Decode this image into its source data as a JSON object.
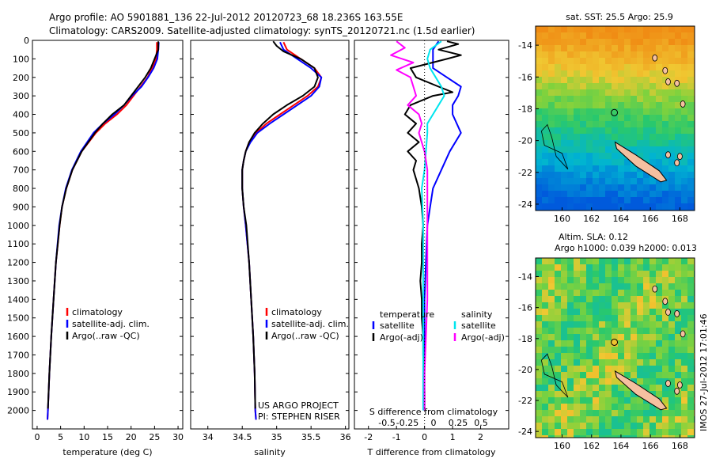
{
  "header": {
    "line1": "Argo profile: AO 5901881_136 22-Jul-2012 20120723_68 18.236S 163.55E",
    "line2": "Climatology: CARS2009. Satellite-adjusted climatology: synTS_20120721.nc (1.5d earlier)"
  },
  "colors": {
    "climatology": "#ff0000",
    "satellite": "#0000ff",
    "argo": "#000000",
    "cyan": "#00e5ee",
    "magenta": "#ff00ff",
    "island": "#f5c0a0"
  },
  "chart_data": [
    {
      "type": "line",
      "id": "temperature",
      "xlabel": "temperature (deg C)",
      "ylabel": "",
      "xlim": [
        -1,
        31
      ],
      "ylim": [
        2100,
        0
      ],
      "xticks": [
        0,
        5,
        10,
        15,
        20,
        25,
        30
      ],
      "yticks": [
        0,
        100,
        200,
        300,
        400,
        500,
        600,
        700,
        800,
        900,
        1000,
        1100,
        1200,
        1300,
        1400,
        1500,
        1600,
        1700,
        1800,
        1900,
        2000
      ],
      "legend": [
        "climatology",
        "satellite-adj. clim.",
        "Argo(..raw -QC)"
      ],
      "series": [
        {
          "name": "climatology",
          "color": "#ff0000",
          "y": [
            10,
            50,
            100,
            150,
            200,
            250,
            300,
            350,
            400,
            450,
            500,
            600,
            700,
            800,
            900,
            1000,
            1200,
            1400,
            1600,
            1800,
            2000,
            2050
          ],
          "x": [
            25.5,
            25.5,
            25.3,
            24.5,
            23.5,
            22.0,
            20.5,
            19.0,
            17.0,
            14.5,
            12.5,
            9.5,
            7.5,
            6.2,
            5.3,
            4.8,
            4.0,
            3.5,
            3.0,
            2.6,
            2.3,
            2.2
          ]
        },
        {
          "name": "satellite-adj. clim.",
          "color": "#0000ff",
          "y": [
            10,
            50,
            100,
            150,
            200,
            250,
            300,
            350,
            400,
            450,
            500,
            600,
            700,
            800,
            900,
            1000,
            1200,
            1400,
            1600,
            1800,
            2000,
            2050
          ],
          "x": [
            25.9,
            25.8,
            25.6,
            24.8,
            23.6,
            22.2,
            20.2,
            18.5,
            16.5,
            14.0,
            12.0,
            9.3,
            7.4,
            6.1,
            5.3,
            4.7,
            4.0,
            3.5,
            3.0,
            2.6,
            2.3,
            2.2
          ]
        },
        {
          "name": "Argo(..raw -QC)",
          "color": "#000000",
          "y": [
            5,
            50,
            100,
            150,
            200,
            250,
            300,
            350,
            400,
            450,
            500,
            600,
            700,
            800,
            900,
            1000,
            1200,
            1400,
            1600,
            1800,
            1990
          ],
          "x": [
            25.8,
            25.8,
            25.0,
            24.2,
            23.0,
            21.5,
            20.0,
            18.5,
            16.0,
            14.0,
            12.3,
            9.5,
            7.5,
            6.2,
            5.3,
            4.8,
            4.0,
            3.5,
            3.0,
            2.6,
            2.3
          ]
        }
      ]
    },
    {
      "type": "line",
      "id": "salinity",
      "xlabel": "salinity",
      "ylabel": "",
      "xlim": [
        33.75,
        36.05
      ],
      "ylim": [
        2100,
        0
      ],
      "xticks": [
        34,
        34.5,
        35,
        35.5,
        36
      ],
      "legend": [
        "climatology",
        "satellite-adj. clim.",
        "Argo(..raw -QC)"
      ],
      "annotation": [
        "US ARGO PROJECT",
        "PI: STEPHEN RISER"
      ],
      "series": [
        {
          "name": "climatology",
          "color": "#ff0000",
          "y": [
            10,
            50,
            100,
            150,
            200,
            250,
            300,
            350,
            400,
            450,
            500,
            550,
            600,
            650,
            700,
            800,
            900,
            1000,
            1200,
            1400,
            1600,
            1800,
            2000,
            2050
          ],
          "x": [
            35.1,
            35.15,
            35.35,
            35.55,
            35.65,
            35.6,
            35.45,
            35.25,
            35.05,
            34.85,
            34.7,
            34.6,
            34.55,
            34.52,
            34.5,
            34.5,
            34.52,
            34.55,
            34.6,
            34.63,
            34.66,
            34.68,
            34.69,
            34.7
          ]
        },
        {
          "name": "satellite-adj. clim.",
          "color": "#0000ff",
          "y": [
            10,
            50,
            100,
            150,
            200,
            250,
            300,
            350,
            400,
            450,
            500,
            550,
            600,
            650,
            700,
            800,
            900,
            1000,
            1200,
            1400,
            1600,
            1800,
            2000,
            2050
          ],
          "x": [
            35.05,
            35.1,
            35.3,
            35.5,
            35.65,
            35.62,
            35.5,
            35.3,
            35.1,
            34.9,
            34.72,
            34.62,
            34.55,
            34.52,
            34.5,
            34.5,
            34.52,
            34.55,
            34.6,
            34.63,
            34.66,
            34.68,
            34.69,
            34.7
          ]
        },
        {
          "name": "Argo(..raw -QC)",
          "color": "#000000",
          "y": [
            5,
            30,
            60,
            100,
            150,
            200,
            250,
            300,
            350,
            400,
            450,
            500,
            550,
            600,
            650,
            700,
            800,
            900,
            1000,
            1200,
            1400,
            1600,
            1800,
            1990
          ],
          "x": [
            34.95,
            35.0,
            35.1,
            35.35,
            35.55,
            35.6,
            35.55,
            35.38,
            35.15,
            34.95,
            34.8,
            34.68,
            34.6,
            34.55,
            34.52,
            34.5,
            34.5,
            34.52,
            34.56,
            34.6,
            34.63,
            34.66,
            34.68,
            34.69
          ]
        }
      ]
    },
    {
      "type": "line",
      "id": "difference",
      "xlabel": "T difference from climatology",
      "xlabel2": "S difference from climatology",
      "xlim": [
        -2.5,
        3
      ],
      "ylim": [
        2100,
        0
      ],
      "xticks": [
        -2,
        -1,
        0,
        1,
        2
      ],
      "xticks2": [
        -0.5,
        -0.25,
        0,
        0.25,
        0.5
      ],
      "xticks2_labels": [
        "-0.5",
        "-0.25",
        "0",
        "0.25",
        "0.5"
      ],
      "legend_left_title": "temperature",
      "legend_right_title": "salinity",
      "legend_left": [
        "satellite",
        "Argo(-adj)"
      ],
      "legend_right": [
        "satellite",
        "Argo(-adj)"
      ],
      "series": [
        {
          "name": "T satellite",
          "color": "#0000ff",
          "y": [
            5,
            50,
            100,
            150,
            200,
            250,
            300,
            350,
            400,
            500,
            600,
            700,
            800,
            900,
            1000,
            1200,
            1400,
            1600,
            1800,
            2000
          ],
          "x": [
            0.5,
            0.3,
            0.3,
            0.3,
            0.8,
            1.3,
            1.2,
            1.0,
            1.0,
            1.3,
            0.9,
            0.6,
            0.3,
            0.2,
            0.1,
            0.05,
            0,
            0,
            0,
            0
          ]
        },
        {
          "name": "T Argo(-adj)",
          "color": "#000000",
          "y": [
            5,
            20,
            50,
            80,
            100,
            150,
            200,
            250,
            280,
            300,
            350,
            400,
            450,
            500,
            550,
            600,
            650,
            700,
            800,
            900,
            1000,
            1100,
            1200,
            1300,
            1400,
            1500,
            1600,
            1700,
            1800,
            1900,
            2000
          ],
          "x": [
            0.8,
            1.2,
            0.5,
            1.3,
            0.8,
            -0.5,
            -0.3,
            0.5,
            1.0,
            0.3,
            -0.5,
            -0.7,
            -0.3,
            -0.6,
            -0.2,
            -0.6,
            -0.3,
            -0.4,
            -0.2,
            -0.1,
            -0.05,
            -0.1,
            -0.1,
            -0.15,
            -0.1,
            -0.1,
            -0.05,
            -0.05,
            -0.02,
            0,
            0
          ]
        },
        {
          "name": "S satellite",
          "color": "#00e5ee",
          "y": [
            5,
            50,
            100,
            150,
            200,
            250,
            300,
            350,
            400,
            450,
            500,
            600,
            700,
            800,
            1000,
            1200,
            1400,
            1600,
            1800,
            2000
          ],
          "x": [
            0.6,
            0.2,
            0.1,
            0.2,
            0.4,
            0.6,
            0.7,
            0.5,
            0.3,
            0.1,
            0.1,
            0.05,
            0,
            -0.1,
            -0.05,
            -0.05,
            -0.05,
            -0.05,
            -0.05,
            -0.05
          ]
        },
        {
          "name": "S Argo(-adj)",
          "color": "#ff00ff",
          "y": [
            5,
            40,
            80,
            120,
            160,
            200,
            250,
            300,
            350,
            400,
            450,
            500,
            600,
            700,
            800,
            1000,
            1200,
            1400,
            1600,
            1800,
            2000
          ],
          "x": [
            -1.0,
            -0.7,
            -1.2,
            -0.4,
            -1.0,
            -0.5,
            -0.4,
            -0.3,
            -0.6,
            -0.2,
            -0.1,
            -0.2,
            0,
            0.1,
            0.1,
            0.1,
            0.1,
            0.1,
            0.05,
            0,
            0
          ]
        }
      ]
    }
  ],
  "maps": [
    {
      "id": "sst-map",
      "title": "sat. SST: 25.5 Argo: 25.9",
      "xticks": [
        "160",
        "162",
        "164",
        "166",
        "168"
      ],
      "yticks": [
        "-14",
        "-16",
        "-18",
        "-20",
        "-22",
        "-24"
      ],
      "colorscheme": "sst"
    },
    {
      "id": "sla-map",
      "title1": "Altim. SLA: 0.12",
      "title2": "Argo h1000: 0.039 h2000: 0.013",
      "xticks": [
        "160",
        "162",
        "164",
        "166",
        "168"
      ],
      "yticks": [
        "-14",
        "-16",
        "-18",
        "-20",
        "-22",
        "-24"
      ],
      "colorscheme": "sla"
    }
  ],
  "footer": {
    "stamp": "IMOS 27-Jul-2012 17:01:46"
  }
}
